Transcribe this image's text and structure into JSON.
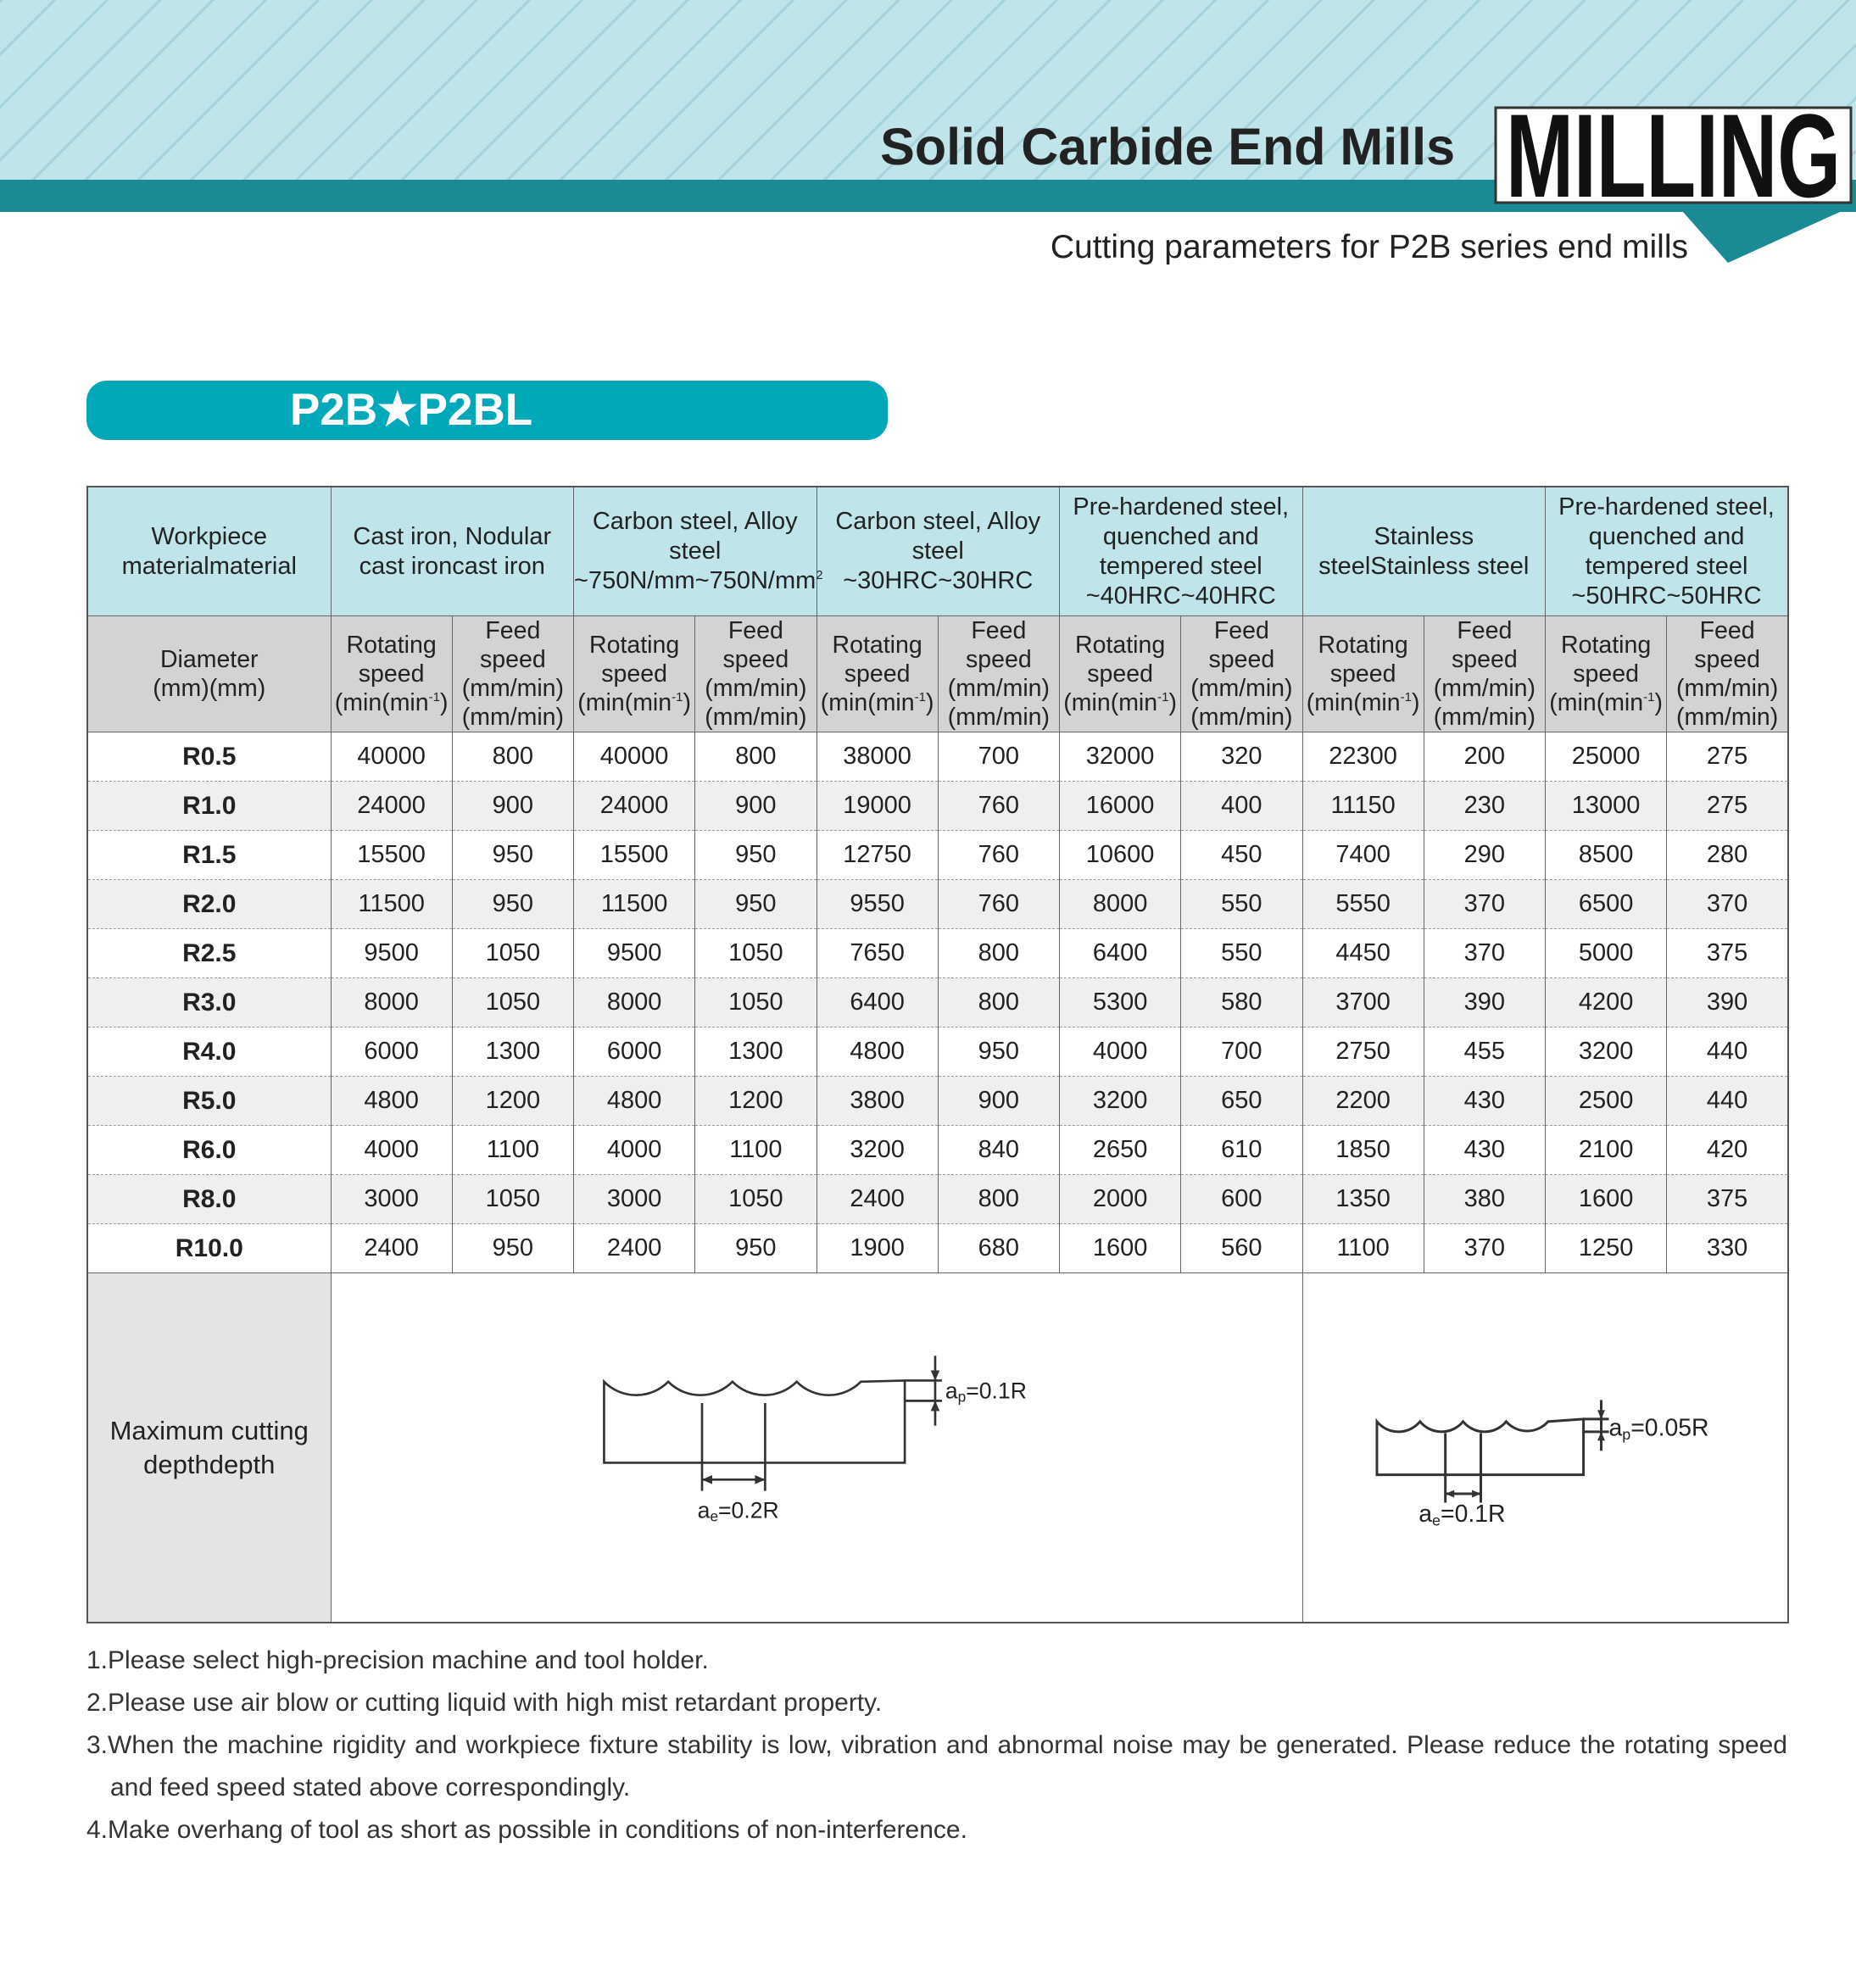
{
  "header": {
    "title": "Solid Carbide End Mills",
    "badge": "MILLING",
    "subtitle": "Cutting parameters for P2B series end mills"
  },
  "section_title": "P2B★P2BL",
  "table": {
    "corner": {
      "lines": [
        "Workpiece",
        "material"
      ]
    },
    "materials": [
      {
        "lines": [
          "Cast iron, Nodular",
          "cast iron"
        ]
      },
      {
        "lines": [
          "Carbon steel, Alloy",
          "steel",
          "~750N/mm"
        ],
        "sup": "2"
      },
      {
        "lines": [
          "Carbon steel, Alloy",
          "steel",
          "~30HRC"
        ]
      },
      {
        "lines": [
          "Pre-hardened steel,",
          "quenched and",
          "tempered steel",
          "~40HRC"
        ]
      },
      {
        "lines": [
          "Stainless steel"
        ]
      },
      {
        "lines": [
          "Pre-hardened steel,",
          "quenched and",
          "tempered steel",
          "~50HRC"
        ]
      }
    ],
    "diameter_label": {
      "lines": [
        "Diameter",
        "(mm)"
      ]
    },
    "rotating_speed": {
      "lines": [
        "Rotating",
        "speed",
        "(min"
      ],
      "sup": "-1",
      "close": ")"
    },
    "feed_speed": {
      "lines": [
        "Feed",
        "speed",
        "(mm/min)"
      ]
    },
    "rows": [
      [
        "R0.5",
        40000,
        800,
        40000,
        800,
        38000,
        700,
        32000,
        320,
        22300,
        200,
        25000,
        275
      ],
      [
        "R1.0",
        24000,
        900,
        24000,
        900,
        19000,
        760,
        16000,
        400,
        11150,
        230,
        13000,
        275
      ],
      [
        "R1.5",
        15500,
        950,
        15500,
        950,
        12750,
        760,
        10600,
        450,
        7400,
        290,
        8500,
        280
      ],
      [
        "R2.0",
        11500,
        950,
        11500,
        950,
        9550,
        760,
        8000,
        550,
        5550,
        370,
        6500,
        370
      ],
      [
        "R2.5",
        9500,
        1050,
        9500,
        1050,
        7650,
        800,
        6400,
        550,
        4450,
        370,
        5000,
        375
      ],
      [
        "R3.0",
        8000,
        1050,
        8000,
        1050,
        6400,
        800,
        5300,
        580,
        3700,
        390,
        4200,
        390
      ],
      [
        "R4.0",
        6000,
        1300,
        6000,
        1300,
        4800,
        950,
        4000,
        700,
        2750,
        455,
        3200,
        440
      ],
      [
        "R5.0",
        4800,
        1200,
        4800,
        1200,
        3800,
        900,
        3200,
        650,
        2200,
        430,
        2500,
        440
      ],
      [
        "R6.0",
        4000,
        1100,
        4000,
        1100,
        3200,
        840,
        2650,
        610,
        1850,
        430,
        2100,
        420
      ],
      [
        "R8.0",
        3000,
        1050,
        3000,
        1050,
        2400,
        800,
        2000,
        600,
        1350,
        380,
        1600,
        375
      ],
      [
        "R10.0",
        2400,
        950,
        2400,
        950,
        1900,
        680,
        1600,
        560,
        1100,
        370,
        1250,
        330
      ]
    ],
    "max_depth": {
      "label": {
        "lines": [
          "Maximum cutting",
          "depth"
        ]
      },
      "diagrams": [
        {
          "ap": {
            "symbol": "a",
            "sub": "p",
            "value": "=0.1R"
          },
          "ae": {
            "symbol": "a",
            "sub": "e",
            "value": "=0.2R"
          }
        },
        {
          "ap": {
            "symbol": "a",
            "sub": "p",
            "value": "=0.05R"
          },
          "ae": {
            "symbol": "a",
            "sub": "e",
            "value": "=0.1R"
          }
        }
      ]
    }
  },
  "notes": [
    "1.Please select high-precision machine and tool holder.",
    "2.Please use air blow or cutting liquid with high mist retardant property.",
    "3.When the machine rigidity and workpiece fixture stability is low, vibration and abnormal noise may be generated. Please reduce the rotating speed and feed speed stated above correspondingly.",
    "4.Make overhang of tool as short as possible in conditions of non-interference."
  ]
}
